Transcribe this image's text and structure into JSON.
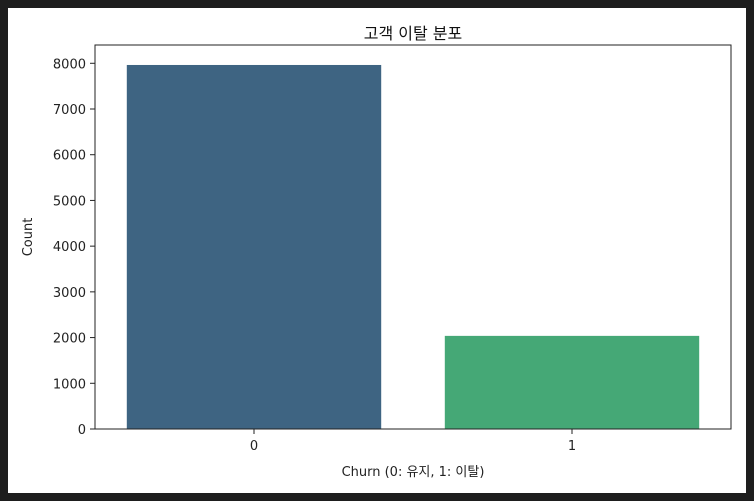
{
  "chart_data": {
    "type": "bar",
    "title": "고객 이탈 분포",
    "xlabel": "Churn (0: 유지, 1: 이탈)",
    "ylabel": "Count",
    "categories": [
      "0",
      "1"
    ],
    "values": [
      7963,
      2037
    ],
    "colors": [
      "#3e6482",
      "#45a876"
    ],
    "ylim": [
      0,
      8400
    ],
    "yticks": [
      0,
      1000,
      2000,
      3000,
      4000,
      5000,
      6000,
      7000,
      8000
    ],
    "grid": false,
    "legend": "none"
  }
}
